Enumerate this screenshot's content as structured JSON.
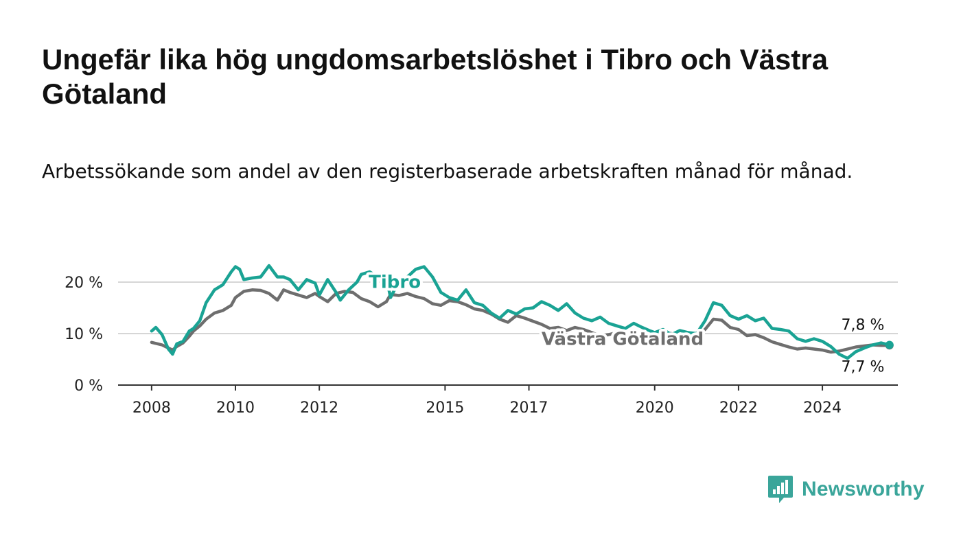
{
  "title": "Ungefär lika hög ungdomsarbetslöshet i Tibro och Västra Götaland",
  "subtitle": "Arbetssökande som andel av den registerbaserade arbetskraften månad för månad.",
  "brand": {
    "name": "Newsworthy",
    "icon": "newsworthy-logo-icon",
    "color": "#3aa59a"
  },
  "chart_data": {
    "type": "line",
    "title": "Ungefär lika hög ungdomsarbetslöshet i Tibro och Västra Götaland",
    "subtitle": "Arbetssökande som andel av den registerbaserade arbetskraften månad för månad.",
    "xlabel": "",
    "ylabel": "",
    "xlim": [
      2007.2,
      2025.8
    ],
    "ylim": [
      0,
      20
    ],
    "grid": true,
    "y_ticks": [
      0,
      10,
      20
    ],
    "y_tick_labels": [
      "0 %",
      "10 %",
      "20 %"
    ],
    "x_ticks": [
      2008,
      2010,
      2012,
      2015,
      2017,
      2020,
      2022,
      2024
    ],
    "x_tick_labels": [
      "2008",
      "2010",
      "2012",
      "2015",
      "2017",
      "2020",
      "2022",
      "2024"
    ],
    "series": [
      {
        "name": "Västra Götaland",
        "color": "#6e6e6e",
        "end_label": "7,7 %",
        "points": [
          [
            2008.0,
            8.3
          ],
          [
            2008.25,
            7.8
          ],
          [
            2008.4,
            7.2
          ],
          [
            2008.5,
            6.8
          ],
          [
            2008.6,
            7.5
          ],
          [
            2008.75,
            8.2
          ],
          [
            2008.9,
            9.5
          ],
          [
            2009.0,
            10.5
          ],
          [
            2009.15,
            11.5
          ],
          [
            2009.3,
            12.8
          ],
          [
            2009.5,
            14.0
          ],
          [
            2009.7,
            14.5
          ],
          [
            2009.9,
            15.5
          ],
          [
            2010.0,
            17.0
          ],
          [
            2010.2,
            18.2
          ],
          [
            2010.4,
            18.5
          ],
          [
            2010.6,
            18.4
          ],
          [
            2010.8,
            17.8
          ],
          [
            2011.0,
            16.5
          ],
          [
            2011.15,
            18.5
          ],
          [
            2011.3,
            18.0
          ],
          [
            2011.5,
            17.5
          ],
          [
            2011.7,
            17.0
          ],
          [
            2011.9,
            17.8
          ],
          [
            2012.0,
            17.2
          ],
          [
            2012.2,
            16.2
          ],
          [
            2012.4,
            17.8
          ],
          [
            2012.6,
            18.2
          ],
          [
            2012.8,
            18.0
          ],
          [
            2013.0,
            16.8
          ],
          [
            2013.2,
            16.2
          ],
          [
            2013.4,
            15.2
          ],
          [
            2013.6,
            16.2
          ],
          [
            2013.7,
            17.6
          ],
          [
            2013.9,
            17.4
          ],
          [
            2014.1,
            17.8
          ],
          [
            2014.3,
            17.2
          ],
          [
            2014.5,
            16.8
          ],
          [
            2014.7,
            15.8
          ],
          [
            2014.9,
            15.5
          ],
          [
            2015.1,
            16.4
          ],
          [
            2015.3,
            16.2
          ],
          [
            2015.5,
            15.6
          ],
          [
            2015.7,
            14.8
          ],
          [
            2015.9,
            14.5
          ],
          [
            2016.1,
            13.8
          ],
          [
            2016.3,
            12.8
          ],
          [
            2016.5,
            12.2
          ],
          [
            2016.7,
            13.5
          ],
          [
            2016.9,
            13.0
          ],
          [
            2017.1,
            12.4
          ],
          [
            2017.3,
            11.8
          ],
          [
            2017.5,
            11.0
          ],
          [
            2017.7,
            11.2
          ],
          [
            2017.9,
            10.6
          ],
          [
            2018.1,
            11.2
          ],
          [
            2018.3,
            10.8
          ],
          [
            2018.5,
            10.2
          ],
          [
            2018.7,
            9.5
          ],
          [
            2018.9,
            9.8
          ],
          [
            2019.1,
            10.2
          ],
          [
            2019.3,
            9.8
          ],
          [
            2019.5,
            9.4
          ],
          [
            2019.7,
            9.0
          ],
          [
            2019.9,
            9.3
          ],
          [
            2020.0,
            9.2
          ],
          [
            2020.2,
            10.2
          ],
          [
            2020.4,
            10.0
          ],
          [
            2020.6,
            9.2
          ],
          [
            2020.8,
            10.0
          ],
          [
            2021.0,
            9.8
          ],
          [
            2021.2,
            10.8
          ],
          [
            2021.4,
            12.8
          ],
          [
            2021.6,
            12.6
          ],
          [
            2021.8,
            11.2
          ],
          [
            2022.0,
            10.8
          ],
          [
            2022.2,
            9.6
          ],
          [
            2022.4,
            9.8
          ],
          [
            2022.6,
            9.2
          ],
          [
            2022.8,
            8.4
          ],
          [
            2023.0,
            7.9
          ],
          [
            2023.2,
            7.4
          ],
          [
            2023.4,
            7.0
          ],
          [
            2023.6,
            7.2
          ],
          [
            2023.8,
            7.0
          ],
          [
            2024.0,
            6.8
          ],
          [
            2024.2,
            6.4
          ],
          [
            2024.4,
            6.6
          ],
          [
            2024.6,
            7.0
          ],
          [
            2024.8,
            7.4
          ],
          [
            2025.0,
            7.6
          ],
          [
            2025.2,
            7.8
          ],
          [
            2025.4,
            7.7
          ],
          [
            2025.6,
            7.7
          ]
        ]
      },
      {
        "name": "Tibro",
        "color": "#1aa394",
        "end_label": "7,8 %",
        "points": [
          [
            2008.0,
            10.5
          ],
          [
            2008.1,
            11.2
          ],
          [
            2008.25,
            9.8
          ],
          [
            2008.4,
            7.0
          ],
          [
            2008.5,
            6.0
          ],
          [
            2008.6,
            8.0
          ],
          [
            2008.75,
            8.5
          ],
          [
            2008.9,
            10.5
          ],
          [
            2009.0,
            11.0
          ],
          [
            2009.15,
            12.5
          ],
          [
            2009.3,
            16.0
          ],
          [
            2009.5,
            18.5
          ],
          [
            2009.7,
            19.5
          ],
          [
            2009.9,
            22.0
          ],
          [
            2010.0,
            23.0
          ],
          [
            2010.1,
            22.5
          ],
          [
            2010.2,
            20.5
          ],
          [
            2010.4,
            20.8
          ],
          [
            2010.6,
            21.0
          ],
          [
            2010.8,
            23.2
          ],
          [
            2011.0,
            21.0
          ],
          [
            2011.15,
            21.0
          ],
          [
            2011.3,
            20.5
          ],
          [
            2011.5,
            18.5
          ],
          [
            2011.7,
            20.5
          ],
          [
            2011.9,
            19.8
          ],
          [
            2012.0,
            17.5
          ],
          [
            2012.2,
            20.5
          ],
          [
            2012.4,
            18.0
          ],
          [
            2012.5,
            16.5
          ],
          [
            2012.7,
            18.5
          ],
          [
            2012.9,
            20.0
          ],
          [
            2013.0,
            21.5
          ],
          [
            2013.2,
            22.0
          ],
          [
            2013.4,
            21.0
          ],
          [
            2013.6,
            20.8
          ],
          [
            2013.7,
            17.0
          ],
          [
            2013.9,
            20.2
          ],
          [
            2014.1,
            21.0
          ],
          [
            2014.3,
            22.5
          ],
          [
            2014.5,
            23.0
          ],
          [
            2014.7,
            21.0
          ],
          [
            2014.9,
            18.0
          ],
          [
            2015.1,
            17.0
          ],
          [
            2015.3,
            16.5
          ],
          [
            2015.5,
            18.5
          ],
          [
            2015.7,
            16.0
          ],
          [
            2015.9,
            15.5
          ],
          [
            2016.1,
            14.0
          ],
          [
            2016.3,
            13.0
          ],
          [
            2016.5,
            14.5
          ],
          [
            2016.7,
            13.8
          ],
          [
            2016.9,
            14.8
          ],
          [
            2017.1,
            15.0
          ],
          [
            2017.3,
            16.2
          ],
          [
            2017.5,
            15.5
          ],
          [
            2017.7,
            14.5
          ],
          [
            2017.9,
            15.8
          ],
          [
            2018.1,
            14.0
          ],
          [
            2018.3,
            13.0
          ],
          [
            2018.5,
            12.5
          ],
          [
            2018.7,
            13.2
          ],
          [
            2018.9,
            12.0
          ],
          [
            2019.1,
            11.5
          ],
          [
            2019.3,
            11.0
          ],
          [
            2019.5,
            12.0
          ],
          [
            2019.7,
            11.2
          ],
          [
            2019.9,
            10.5
          ],
          [
            2020.0,
            10.2
          ],
          [
            2020.2,
            10.8
          ],
          [
            2020.4,
            9.8
          ],
          [
            2020.6,
            10.6
          ],
          [
            2020.8,
            10.2
          ],
          [
            2021.0,
            10.0
          ],
          [
            2021.2,
            12.5
          ],
          [
            2021.4,
            16.0
          ],
          [
            2021.6,
            15.5
          ],
          [
            2021.8,
            13.5
          ],
          [
            2022.0,
            12.8
          ],
          [
            2022.2,
            13.5
          ],
          [
            2022.4,
            12.5
          ],
          [
            2022.6,
            13.0
          ],
          [
            2022.8,
            11.0
          ],
          [
            2023.0,
            10.8
          ],
          [
            2023.2,
            10.5
          ],
          [
            2023.4,
            9.0
          ],
          [
            2023.6,
            8.5
          ],
          [
            2023.8,
            9.0
          ],
          [
            2024.0,
            8.5
          ],
          [
            2024.2,
            7.5
          ],
          [
            2024.4,
            6.0
          ],
          [
            2024.6,
            5.2
          ],
          [
            2024.8,
            6.5
          ],
          [
            2025.0,
            7.2
          ],
          [
            2025.2,
            7.8
          ],
          [
            2025.4,
            8.2
          ],
          [
            2025.6,
            7.8
          ]
        ]
      }
    ]
  }
}
